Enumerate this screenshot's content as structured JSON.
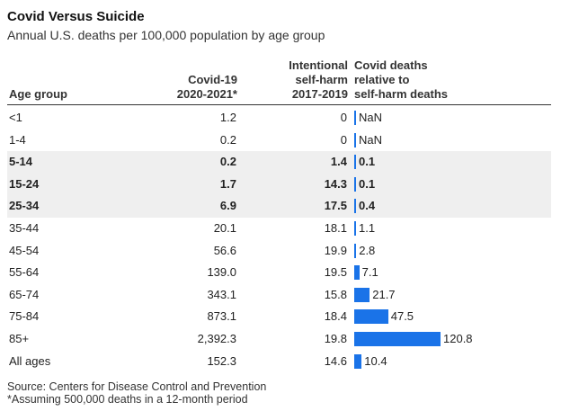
{
  "title": "Covid Versus Suicide",
  "subtitle": "Annual U.S. deaths per 100,000 population by age group",
  "headers": {
    "age": "Age group",
    "covid": [
      "Covid-19",
      "2020-2021*"
    ],
    "harm": [
      "Intentional",
      "self-harm",
      "2017-2019"
    ],
    "ratio": [
      "Covid deaths",
      "relative to",
      "self-harm deaths"
    ]
  },
  "footer": {
    "source": "Source: Centers for Disease Control and Prevention",
    "note": "*Assuming 500,000 deaths in a 12-month period"
  },
  "colors": {
    "bar": "#1a73e8",
    "shade": "#efefef"
  },
  "chart_data": {
    "type": "table",
    "title": "Covid Versus Suicide",
    "subtitle": "Annual U.S. deaths per 100,000 population by age group",
    "columns": [
      "Age group",
      "Covid-19 2020-2021*",
      "Intentional self-harm 2017-2019",
      "Covid deaths relative to self-harm deaths"
    ],
    "rows": [
      {
        "age": "<1",
        "covid": "1.2",
        "harm": "0",
        "ratio": "NaN",
        "value": 0,
        "highlight": false
      },
      {
        "age": "1-4",
        "covid": "0.2",
        "harm": "0",
        "ratio": "NaN",
        "value": 0,
        "highlight": false
      },
      {
        "age": "5-14",
        "covid": "0.2",
        "harm": "1.4",
        "ratio": "0.1",
        "value": 0.1,
        "highlight": true
      },
      {
        "age": "15-24",
        "covid": "1.7",
        "harm": "14.3",
        "ratio": "0.1",
        "value": 0.1,
        "highlight": true
      },
      {
        "age": "25-34",
        "covid": "6.9",
        "harm": "17.5",
        "ratio": "0.4",
        "value": 0.4,
        "highlight": true
      },
      {
        "age": "35-44",
        "covid": "20.1",
        "harm": "18.1",
        "ratio": "1.1",
        "value": 1.1,
        "highlight": false
      },
      {
        "age": "45-54",
        "covid": "56.6",
        "harm": "19.9",
        "ratio": "2.8",
        "value": 2.8,
        "highlight": false
      },
      {
        "age": "55-64",
        "covid": "139.0",
        "harm": "19.5",
        "ratio": "7.1",
        "value": 7.1,
        "highlight": false
      },
      {
        "age": "65-74",
        "covid": "343.1",
        "harm": "15.8",
        "ratio": "21.7",
        "value": 21.7,
        "highlight": false
      },
      {
        "age": "75-84",
        "covid": "873.1",
        "harm": "18.4",
        "ratio": "47.5",
        "value": 47.5,
        "highlight": false
      },
      {
        "age": "85+",
        "covid": "2,392.3",
        "harm": "19.8",
        "ratio": "120.8",
        "value": 120.8,
        "highlight": false
      },
      {
        "age": "All ages",
        "covid": "152.3",
        "harm": "14.6",
        "ratio": "10.4",
        "value": 10.4,
        "highlight": false
      }
    ]
  }
}
